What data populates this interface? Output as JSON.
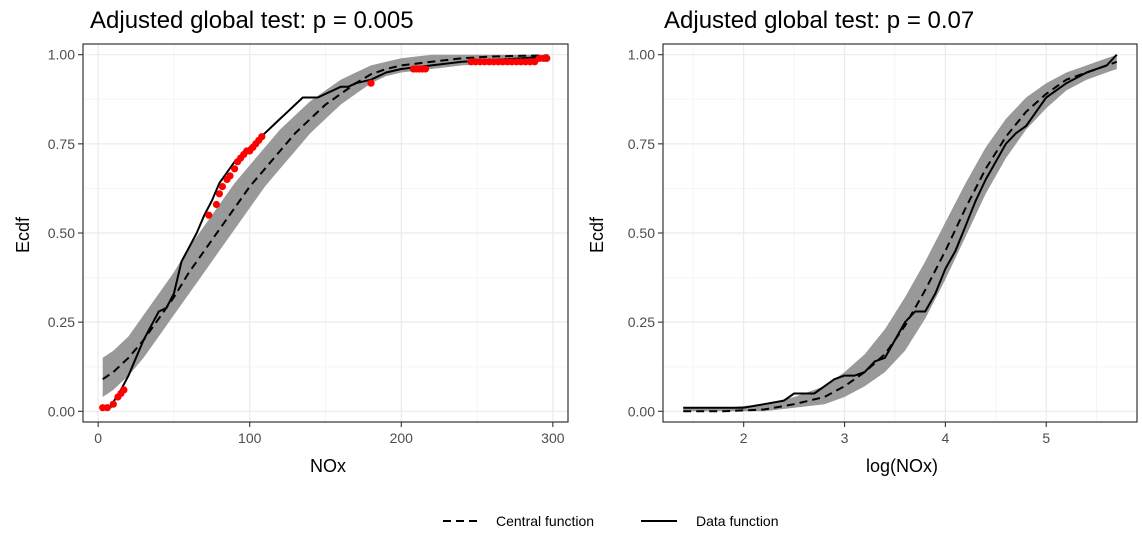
{
  "chart_data": [
    {
      "type": "line",
      "title": "Adjusted global test: p = 0.005",
      "xlabel": "NOx",
      "ylabel": "Ecdf",
      "xlim": [
        -10,
        310
      ],
      "ylim": [
        -0.03,
        1.03
      ],
      "xticks": [
        0,
        100,
        200,
        300
      ],
      "xtick_labels": [
        "0",
        "100",
        "200",
        "300"
      ],
      "yticks": [
        0,
        0.25,
        0.5,
        0.75,
        1
      ],
      "ytick_labels": [
        "0.00",
        "0.25",
        "0.50",
        "0.75",
        "1.00"
      ],
      "grid": true,
      "envelope": {
        "x": [
          3,
          10,
          20,
          30,
          40,
          50,
          60,
          70,
          80,
          90,
          100,
          110,
          120,
          130,
          140,
          150,
          160,
          170,
          180,
          190,
          200,
          220,
          240,
          260,
          280,
          297
        ],
        "lo": [
          0.04,
          0.06,
          0.1,
          0.15,
          0.21,
          0.27,
          0.33,
          0.39,
          0.45,
          0.51,
          0.57,
          0.63,
          0.68,
          0.73,
          0.78,
          0.82,
          0.86,
          0.89,
          0.92,
          0.94,
          0.95,
          0.96,
          0.97,
          0.975,
          0.98,
          0.98
        ],
        "hi": [
          0.15,
          0.17,
          0.21,
          0.27,
          0.33,
          0.39,
          0.46,
          0.52,
          0.58,
          0.64,
          0.69,
          0.74,
          0.79,
          0.83,
          0.87,
          0.9,
          0.93,
          0.95,
          0.97,
          0.98,
          0.99,
          1.0,
          1.0,
          1.0,
          1.0,
          1.0
        ]
      },
      "series": [
        {
          "name": "Central function",
          "x": [
            3,
            10,
            20,
            30,
            40,
            50,
            60,
            70,
            80,
            90,
            100,
            110,
            120,
            130,
            140,
            150,
            160,
            170,
            180,
            190,
            200,
            220,
            240,
            260,
            280,
            297
          ],
          "y": [
            0.09,
            0.11,
            0.15,
            0.2,
            0.26,
            0.32,
            0.39,
            0.45,
            0.51,
            0.57,
            0.63,
            0.68,
            0.73,
            0.78,
            0.82,
            0.86,
            0.89,
            0.92,
            0.945,
            0.96,
            0.97,
            0.98,
            0.99,
            0.995,
            0.997,
            0.998
          ]
        },
        {
          "name": "Data function",
          "x": [
            3,
            8,
            12,
            15,
            20,
            25,
            30,
            35,
            40,
            45,
            50,
            55,
            60,
            65,
            70,
            75,
            80,
            85,
            90,
            95,
            100,
            105,
            110,
            115,
            120,
            125,
            130,
            135,
            140,
            145,
            150,
            155,
            160,
            165,
            170,
            180,
            190,
            200,
            220,
            240,
            260,
            280,
            297
          ],
          "y": [
            0.01,
            0.01,
            0.04,
            0.06,
            0.1,
            0.15,
            0.2,
            0.24,
            0.28,
            0.29,
            0.33,
            0.42,
            0.46,
            0.5,
            0.55,
            0.59,
            0.64,
            0.67,
            0.7,
            0.72,
            0.74,
            0.76,
            0.78,
            0.8,
            0.82,
            0.84,
            0.86,
            0.88,
            0.88,
            0.88,
            0.89,
            0.9,
            0.91,
            0.91,
            0.92,
            0.93,
            0.95,
            0.96,
            0.97,
            0.98,
            0.985,
            0.99,
            0.995
          ]
        }
      ],
      "highlight_points": {
        "color": "#ff0000",
        "x": [
          3,
          6,
          10,
          13,
          15,
          17,
          73,
          78,
          80,
          82,
          85,
          87,
          90,
          92,
          94,
          96,
          98,
          100,
          102,
          104,
          106,
          108,
          180,
          208,
          210,
          212,
          214,
          216,
          246,
          249,
          252,
          255,
          258,
          261,
          264,
          267,
          270,
          273,
          276,
          279,
          282,
          285,
          288,
          291,
          294,
          296
        ],
        "y": [
          0.01,
          0.01,
          0.02,
          0.04,
          0.05,
          0.06,
          0.55,
          0.58,
          0.61,
          0.63,
          0.65,
          0.66,
          0.68,
          0.7,
          0.71,
          0.72,
          0.73,
          0.73,
          0.74,
          0.75,
          0.76,
          0.77,
          0.92,
          0.96,
          0.96,
          0.96,
          0.96,
          0.96,
          0.98,
          0.98,
          0.98,
          0.98,
          0.98,
          0.98,
          0.98,
          0.98,
          0.98,
          0.98,
          0.98,
          0.98,
          0.98,
          0.98,
          0.98,
          0.99,
          0.99,
          0.99
        ]
      }
    },
    {
      "type": "line",
      "title": "Adjusted global test: p = 0.07",
      "xlabel": "log(NOx)",
      "ylabel": "Ecdf",
      "xlim": [
        1.2,
        5.9
      ],
      "ylim": [
        -0.03,
        1.03
      ],
      "xticks": [
        2,
        3,
        4,
        5
      ],
      "xtick_labels": [
        "2",
        "3",
        "4",
        "5"
      ],
      "yticks": [
        0,
        0.25,
        0.5,
        0.75,
        1
      ],
      "ytick_labels": [
        "0.00",
        "0.25",
        "0.50",
        "0.75",
        "1.00"
      ],
      "grid": true,
      "envelope": {
        "x": [
          1.4,
          1.8,
          2.2,
          2.5,
          2.8,
          3.0,
          3.2,
          3.4,
          3.6,
          3.8,
          4.0,
          4.2,
          4.4,
          4.6,
          4.8,
          5.0,
          5.2,
          5.4,
          5.6,
          5.7
        ],
        "lo": [
          0.0,
          0.0,
          0.0,
          0.01,
          0.02,
          0.04,
          0.07,
          0.11,
          0.17,
          0.26,
          0.37,
          0.49,
          0.61,
          0.71,
          0.79,
          0.85,
          0.9,
          0.93,
          0.95,
          0.96
        ],
        "hi": [
          0.01,
          0.01,
          0.02,
          0.04,
          0.07,
          0.11,
          0.16,
          0.23,
          0.32,
          0.42,
          0.53,
          0.64,
          0.74,
          0.82,
          0.88,
          0.92,
          0.95,
          0.97,
          0.99,
          1.0
        ]
      },
      "series": [
        {
          "name": "Central function",
          "x": [
            1.4,
            1.8,
            2.2,
            2.5,
            2.8,
            3.0,
            3.2,
            3.4,
            3.6,
            3.8,
            4.0,
            4.2,
            4.4,
            4.6,
            4.8,
            5.0,
            5.2,
            5.4,
            5.6,
            5.7
          ],
          "y": [
            0.0,
            0.0,
            0.005,
            0.02,
            0.04,
            0.07,
            0.11,
            0.16,
            0.24,
            0.34,
            0.45,
            0.57,
            0.68,
            0.77,
            0.84,
            0.89,
            0.93,
            0.95,
            0.97,
            0.98
          ]
        },
        {
          "name": "Data function",
          "x": [
            1.4,
            1.8,
            2.0,
            2.2,
            2.4,
            2.5,
            2.7,
            2.8,
            2.9,
            3.0,
            3.1,
            3.2,
            3.3,
            3.4,
            3.5,
            3.6,
            3.7,
            3.8,
            3.9,
            4.0,
            4.1,
            4.2,
            4.3,
            4.4,
            4.5,
            4.6,
            4.7,
            4.8,
            4.9,
            5.0,
            5.2,
            5.4,
            5.6,
            5.7
          ],
          "y": [
            0.01,
            0.01,
            0.01,
            0.02,
            0.03,
            0.05,
            0.05,
            0.07,
            0.09,
            0.1,
            0.1,
            0.11,
            0.14,
            0.15,
            0.2,
            0.25,
            0.28,
            0.28,
            0.33,
            0.4,
            0.45,
            0.52,
            0.59,
            0.65,
            0.7,
            0.75,
            0.78,
            0.8,
            0.84,
            0.88,
            0.92,
            0.95,
            0.97,
            1.0
          ]
        }
      ]
    }
  ],
  "legend": {
    "items": [
      {
        "label": "Central function",
        "style": "dashed"
      },
      {
        "label": "Data function",
        "style": "solid"
      }
    ]
  },
  "colors": {
    "envelope": "#999999",
    "line": "#000000",
    "highlight": "#ff0000",
    "grid_major": "#ebebeb",
    "grid_minor": "#f5f5f5",
    "panel_border": "#333333",
    "tick_label": "#4d4d4d"
  }
}
